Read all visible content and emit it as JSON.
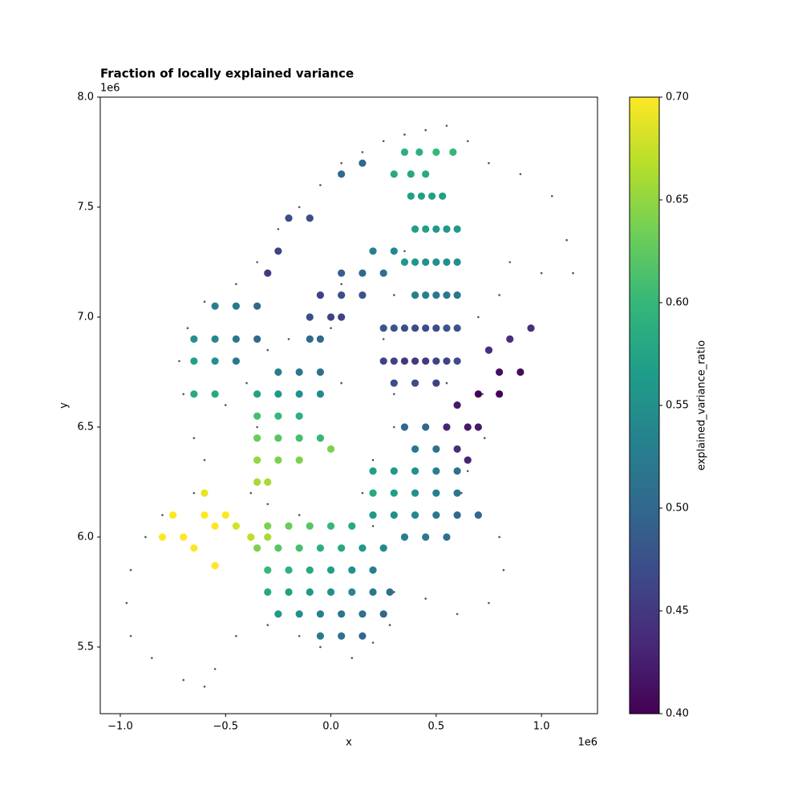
{
  "chart_data": {
    "type": "scatter",
    "title": "Fraction of locally explained variance",
    "x_label": "x",
    "y_label": "y",
    "x_offset": "1e6",
    "y_offset": "1e6",
    "xlim": [
      -1095000,
      1266000
    ],
    "ylim": [
      5197000,
      8000000
    ],
    "xticks": [
      {
        "value": -1000000,
        "label": "−1.0"
      },
      {
        "value": -500000,
        "label": "−0.5"
      },
      {
        "value": 0,
        "label": "0.0"
      },
      {
        "value": 500000,
        "label": "0.5"
      },
      {
        "value": 1000000,
        "label": "1.0"
      }
    ],
    "yticks": [
      {
        "value": 5500000,
        "label": "5.5"
      },
      {
        "value": 6000000,
        "label": "6.0"
      },
      {
        "value": 6500000,
        "label": "6.5"
      },
      {
        "value": 7000000,
        "label": "7.0"
      },
      {
        "value": 7500000,
        "label": "7.5"
      },
      {
        "value": 8000000,
        "label": "8.0"
      }
    ],
    "colorbar_label": "explained_variance_ratio",
    "clim": [
      0.4,
      0.7
    ],
    "cticks": [
      {
        "value": 0.4,
        "label": "0.40"
      },
      {
        "value": 0.45,
        "label": "0.45"
      },
      {
        "value": 0.5,
        "label": "0.50"
      },
      {
        "value": 0.55,
        "label": "0.55"
      },
      {
        "value": 0.6,
        "label": "0.60"
      },
      {
        "value": 0.65,
        "label": "0.65"
      },
      {
        "value": 0.7,
        "label": "0.70"
      }
    ],
    "colormap": [
      "#440154",
      "#482878",
      "#3e4989",
      "#31688e",
      "#26828e",
      "#1f9e89",
      "#35b779",
      "#6ece58",
      "#b5de2b",
      "#fde725"
    ],
    "series": [
      {
        "x": [
          350000,
          420000,
          500000,
          580000,
          300000,
          380000,
          450000,
          380000,
          430000,
          480000,
          530000,
          400000,
          450000,
          500000,
          550000,
          600000,
          350000,
          400000,
          450000,
          500000,
          550000,
          600000,
          400000,
          450000,
          500000,
          550000,
          600000,
          250000,
          300000,
          350000,
          400000,
          450000,
          500000,
          550000,
          600000,
          250000,
          300000,
          350000,
          400000,
          450000,
          500000,
          550000,
          600000,
          300000,
          400000,
          500000,
          750000,
          850000,
          950000,
          800000,
          900000,
          700000,
          800000,
          600000,
          650000,
          550000,
          700000,
          600000,
          650000,
          350000,
          450000,
          400000,
          500000,
          200000,
          300000,
          400000,
          500000,
          600000,
          200000,
          300000,
          400000,
          500000,
          600000,
          200000,
          300000,
          400000,
          500000,
          600000,
          700000,
          350000,
          450000,
          550000,
          -300000,
          -200000,
          -100000,
          0,
          100000,
          -350000,
          -250000,
          -150000,
          -50000,
          50000,
          150000,
          250000,
          -300000,
          -200000,
          -100000,
          0,
          100000,
          200000,
          -300000,
          -200000,
          -100000,
          0,
          100000,
          200000,
          280000,
          -250000,
          -150000,
          -50000,
          50000,
          150000,
          250000,
          -50000,
          50000,
          150000,
          -250000,
          -150000,
          -50000,
          -350000,
          -250000,
          -150000,
          -50000,
          -350000,
          -250000,
          -150000,
          -350000,
          -250000,
          -150000,
          -50000,
          -350000,
          -250000,
          -150000,
          -350000,
          -300000,
          0,
          -100000,
          -50000,
          -100000,
          0,
          50000,
          -50000,
          50000,
          150000,
          50000,
          150000,
          250000,
          200000,
          300000,
          -200000,
          -100000,
          -250000,
          -300000,
          -550000,
          -450000,
          -350000,
          -650000,
          -550000,
          -450000,
          -350000,
          -650000,
          -550000,
          -450000,
          -650000,
          -550000,
          50000,
          150000,
          -800000,
          -750000,
          -700000,
          -650000,
          -600000,
          -550000,
          -500000,
          -600000,
          -550000,
          -450000,
          -380000,
          -300000
        ],
        "y": [
          7750000,
          7750000,
          7750000,
          7750000,
          7650000,
          7650000,
          7650000,
          7550000,
          7550000,
          7550000,
          7550000,
          7400000,
          7400000,
          7400000,
          7400000,
          7400000,
          7250000,
          7250000,
          7250000,
          7250000,
          7250000,
          7250000,
          7100000,
          7100000,
          7100000,
          7100000,
          7100000,
          6950000,
          6950000,
          6950000,
          6950000,
          6950000,
          6950000,
          6950000,
          6950000,
          6800000,
          6800000,
          6800000,
          6800000,
          6800000,
          6800000,
          6800000,
          6800000,
          6700000,
          6700000,
          6700000,
          6850000,
          6900000,
          6950000,
          6750000,
          6750000,
          6650000,
          6650000,
          6600000,
          6500000,
          6500000,
          6500000,
          6400000,
          6350000,
          6500000,
          6500000,
          6400000,
          6400000,
          6300000,
          6300000,
          6300000,
          6300000,
          6300000,
          6200000,
          6200000,
          6200000,
          6200000,
          6200000,
          6100000,
          6100000,
          6100000,
          6100000,
          6100000,
          6100000,
          6000000,
          6000000,
          6000000,
          6050000,
          6050000,
          6050000,
          6050000,
          6050000,
          5950000,
          5950000,
          5950000,
          5950000,
          5950000,
          5950000,
          5950000,
          5850000,
          5850000,
          5850000,
          5850000,
          5850000,
          5850000,
          5750000,
          5750000,
          5750000,
          5750000,
          5750000,
          5750000,
          5750000,
          5650000,
          5650000,
          5650000,
          5650000,
          5650000,
          5650000,
          5550000,
          5550000,
          5550000,
          6750000,
          6750000,
          6750000,
          6650000,
          6650000,
          6650000,
          6650000,
          6550000,
          6550000,
          6550000,
          6450000,
          6450000,
          6450000,
          6450000,
          6350000,
          6350000,
          6350000,
          6250000,
          6250000,
          6400000,
          6900000,
          6900000,
          7000000,
          7000000,
          7000000,
          7100000,
          7100000,
          7100000,
          7200000,
          7200000,
          7200000,
          7300000,
          7300000,
          7450000,
          7450000,
          7300000,
          7200000,
          7050000,
          7050000,
          7050000,
          6900000,
          6900000,
          6900000,
          6900000,
          6800000,
          6800000,
          6800000,
          6650000,
          6650000,
          7650000,
          7700000,
          6000000,
          6100000,
          6000000,
          5950000,
          6100000,
          6050000,
          6100000,
          6200000,
          5870000,
          6050000,
          6000000,
          6000000
        ],
        "values": [
          0.59,
          0.59,
          0.6,
          0.6,
          0.58,
          0.58,
          0.58,
          0.57,
          0.57,
          0.57,
          0.57,
          0.57,
          0.57,
          0.56,
          0.56,
          0.56,
          0.56,
          0.56,
          0.55,
          0.55,
          0.55,
          0.55,
          0.53,
          0.53,
          0.52,
          0.52,
          0.52,
          0.48,
          0.48,
          0.47,
          0.47,
          0.47,
          0.47,
          0.48,
          0.48,
          0.46,
          0.46,
          0.45,
          0.45,
          0.45,
          0.46,
          0.46,
          0.47,
          0.47,
          0.47,
          0.46,
          0.44,
          0.44,
          0.44,
          0.41,
          0.41,
          0.4,
          0.4,
          0.42,
          0.42,
          0.43,
          0.42,
          0.44,
          0.43,
          0.5,
          0.5,
          0.52,
          0.51,
          0.57,
          0.56,
          0.55,
          0.53,
          0.51,
          0.58,
          0.57,
          0.55,
          0.53,
          0.52,
          0.56,
          0.55,
          0.54,
          0.52,
          0.5,
          0.5,
          0.53,
          0.52,
          0.51,
          0.64,
          0.63,
          0.62,
          0.6,
          0.58,
          0.64,
          0.62,
          0.61,
          0.59,
          0.58,
          0.56,
          0.54,
          0.6,
          0.59,
          0.58,
          0.57,
          0.55,
          0.53,
          0.58,
          0.57,
          0.56,
          0.55,
          0.54,
          0.52,
          0.51,
          0.56,
          0.55,
          0.53,
          0.52,
          0.51,
          0.5,
          0.52,
          0.51,
          0.5,
          0.53,
          0.52,
          0.51,
          0.57,
          0.56,
          0.55,
          0.54,
          0.61,
          0.6,
          0.59,
          0.63,
          0.62,
          0.61,
          0.6,
          0.65,
          0.64,
          0.64,
          0.66,
          0.66,
          0.64,
          0.5,
          0.5,
          0.47,
          0.46,
          0.46,
          0.46,
          0.47,
          0.48,
          0.49,
          0.5,
          0.51,
          0.53,
          0.54,
          0.47,
          0.47,
          0.46,
          0.45,
          0.53,
          0.52,
          0.5,
          0.55,
          0.54,
          0.52,
          0.5,
          0.57,
          0.55,
          0.52,
          0.58,
          0.58,
          0.5,
          0.5,
          0.7,
          0.7,
          0.7,
          0.7,
          0.7,
          0.7,
          0.7,
          0.69,
          0.7,
          0.68,
          0.67,
          0.66
        ]
      },
      {
        "color": "#555555",
        "x": [
          -700000,
          -720000,
          -680000,
          -600000,
          -450000,
          -350000,
          -250000,
          -150000,
          -50000,
          50000,
          150000,
          250000,
          350000,
          450000,
          550000,
          650000,
          750000,
          900000,
          1050000,
          1120000,
          1150000,
          1000000,
          850000,
          800000,
          700000,
          720000,
          730000,
          650000,
          620000,
          700000,
          800000,
          820000,
          750000,
          600000,
          450000,
          300000,
          280000,
          200000,
          100000,
          -50000,
          -150000,
          -300000,
          -450000,
          -550000,
          -600000,
          -700000,
          -850000,
          -950000,
          -970000,
          -950000,
          -880000,
          -800000,
          -650000,
          -600000,
          -650000,
          -500000,
          -380000,
          -350000,
          -400000,
          -300000,
          -200000,
          -50000,
          50000,
          0,
          50000,
          200000,
          350000,
          300000,
          250000,
          300000,
          550000,
          300000,
          200000,
          150000,
          200000,
          0,
          -150000,
          -300000
        ],
        "y": [
          6650000,
          6800000,
          6950000,
          7070000,
          7150000,
          7250000,
          7400000,
          7500000,
          7600000,
          7700000,
          7750000,
          7800000,
          7830000,
          7850000,
          7870000,
          7800000,
          7700000,
          7650000,
          7550000,
          7350000,
          7200000,
          7200000,
          7250000,
          7100000,
          7000000,
          6650000,
          6450000,
          6300000,
          6200000,
          6100000,
          6000000,
          5850000,
          5700000,
          5650000,
          5720000,
          5750000,
          5600000,
          5520000,
          5450000,
          5500000,
          5550000,
          5600000,
          5550000,
          5400000,
          5320000,
          5350000,
          5450000,
          5550000,
          5700000,
          5850000,
          6000000,
          6100000,
          6200000,
          6350000,
          6450000,
          6600000,
          6200000,
          6500000,
          6700000,
          6850000,
          6900000,
          6750000,
          6700000,
          6950000,
          7150000,
          7300000,
          7300000,
          7100000,
          6900000,
          6650000,
          6700000,
          6500000,
          6350000,
          6200000,
          6050000,
          6050000,
          6100000,
          6150000
        ]
      }
    ]
  }
}
